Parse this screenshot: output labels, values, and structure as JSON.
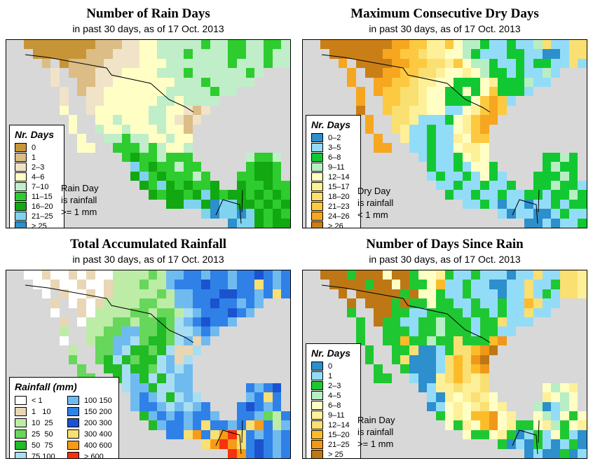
{
  "page": {
    "background": "#ffffff",
    "ocean_color": "#d8d8d8",
    "border_color": "#000000"
  },
  "maps": [
    {
      "title": "Number of Rain Days",
      "subtitle": "in past 30 days, as of  17 Oct. 2013",
      "legend": {
        "title": "Nr. Days",
        "columns": 1,
        "note": "Rain Day\nis rainfall\n>= 1 mm",
        "entries": [
          {
            "label": "0",
            "color": "#c79537"
          },
          {
            "label": "1",
            "color": "#dbbd85"
          },
          {
            "label": "2–3",
            "color": "#f0e3c7"
          },
          {
            "label": "4–6",
            "color": "#ffffc5"
          },
          {
            "label": "7–10",
            "color": "#bfeec9"
          },
          {
            "label": "11–15",
            "color": "#2ecc2e"
          },
          {
            "label": "16–20",
            "color": "#12a812"
          },
          {
            "label": "21–25",
            "color": "#7fd3ee"
          },
          {
            "label": "> 25",
            "color": "#2d8fcb"
          }
        ]
      },
      "palette": {
        "a": "#c79537",
        "b": "#dbbd85",
        "c": "#f0e3c7",
        "d": "#ffffc5",
        "e": "#bfeec9",
        "f": "#2ecc2e",
        "g": "#12a812",
        "h": "#7fd3ee",
        "i": "#2d8fcb"
      },
      "grid": [
        "..aaaaaaaabbbccddeeeeefeeffeeffe",
        "...aaaaaabbbcccddeeefeeeeffeefee",
        "....b.abbbbccccdddeeeeeeefeeefee",
        ".....c.bbbcccddddeeefeeeeeefe...",
        ".....c..bbccdddddddeeefeeeee....",
        "......c.bccdddddddeeeeefee......",
        "......c..ccddddddeedeeee........",
        "......d..cddddddeeddcbc.........",
        ".......d..ddedddeedcbc..........",
        ".......d..eddedddeddb...........",
        "........d..eefeeddedd...........",
        "........dd..fffefedde...........",
        ".............fgffefff......effe.",
        "..............hfgffeff.....fggf.",
        "..............ghfgfffef...ffggf.",
        "...............gfhgfgffg..gffgff",
        "................gfggfghgfggfgfgf",
        "..................gghhgihhggfgfg",
        "......................hihhihgfgf",
        ".........................ihhgfgg"
      ]
    },
    {
      "title": "Maximum Consecutive Dry Days",
      "subtitle": "in past 30 days, as of  17 Oct. 2013",
      "legend": {
        "title": "Nr. Days",
        "columns": 1,
        "note": "Dry Day\nis rainfall\n< 1 mm",
        "entries": [
          {
            "label": "0–2",
            "color": "#2d8fcb"
          },
          {
            "label": "3–5",
            "color": "#93dcf8"
          },
          {
            "label": "6–8",
            "color": "#12c832"
          },
          {
            "label": "9–11",
            "color": "#b7eec3"
          },
          {
            "label": "12–14",
            "color": "#ffffc5"
          },
          {
            "label": "15–17",
            "color": "#fdf098"
          },
          {
            "label": "18–20",
            "color": "#fadf72"
          },
          {
            "label": "21–23",
            "color": "#fcc940"
          },
          {
            "label": "24–26",
            "color": "#f6a61f"
          },
          {
            "label": "> 26",
            "color": "#c97f16"
          }
        ]
      },
      "palette": {
        "a": "#2d8fcb",
        "b": "#93dcf8",
        "c": "#12c832",
        "d": "#b7eec3",
        "e": "#ffffc5",
        "f": "#fdf098",
        "g": "#fadf72",
        "h": "#fcc940",
        "i": "#f6a61f",
        "j": "#c97f16"
      },
      "grid": [
        "..jjjjjjjjiihhffheddcbbcbbdgbbgg",
        "...jjjjjjiihhgffeedcbbbccbbaabgg",
        "....i.jjjjiihhggfheddcbbcbccbbgb",
        ".....i.jjiihhggfeefedccbcbbdb...",
        ".....i..iihhgffeecccefcccdbb....",
        "......i.ihhggfeeccecehcccb......",
        "......i..hhggfeecccehihb........",
        "......j..hggffeebbefhih.........",
        ".......i..ggfbbbcefhii..........",
        ".......i..gfbbcbbefhi...........",
        "........i..fbbcbbfehh...........",
        "........ii..bbcbbeffe...........",
        ".............bcbbcefe......ccdc.",
        "..............cbbcbeec.....cdcc.",
        "..............bcbbcbecb...cccdc.",
        "...............bbcbbcbbc..ccdccb",
        "................cbbcbbcbbccbccdc",
        "..................bbcbabbabbcbcc",
        "......................babbaabcbb",
        ".........................aababbc"
      ]
    },
    {
      "title": "Total Accumulated Rainfall",
      "subtitle": "in past 30 days, as of  17 Oct. 2013",
      "legend": {
        "title": "Rainfall (mm)",
        "columns": 2,
        "note": "",
        "entries": [
          {
            "label": "< 1",
            "color": "#ffffff"
          },
          {
            "label": "1   10",
            "color": "#e9d6b4"
          },
          {
            "label": "10  25",
            "color": "#bdeca6"
          },
          {
            "label": "25  50",
            "color": "#66d75a"
          },
          {
            "label": "50  75",
            "color": "#21bb26"
          },
          {
            "label": "75 100",
            "color": "#a8def2"
          },
          {
            "label": "100 150",
            "color": "#6fbbf0"
          },
          {
            "label": "150 200",
            "color": "#2f81e8"
          },
          {
            "label": "200 300",
            "color": "#1b53cf"
          },
          {
            "label": "300 400",
            "color": "#fadf72"
          },
          {
            "label": "400 600",
            "color": "#f79c18"
          },
          {
            "label": "> 600",
            "color": "#f8310e"
          }
        ]
      },
      "palette": {
        "a": "#ffffff",
        "b": "#e9d6b4",
        "c": "#bdeca6",
        "d": "#66d75a",
        "e": "#21bb26",
        "f": "#a8def2",
        "g": "#6fbbf0",
        "h": "#2f81e8",
        "i": "#1b53cf",
        "j": "#fadf72",
        "k": "#f79c18",
        "l": "#f8310e"
      },
      "grid": [
        "..aabaababaaccccdcgghhghhghhihgh",
        "...aabaabaabcccdccghhhihhghhjhgh",
        "....a.baababcccccdcgghhhiihhghjh",
        ".....b.ababccccddccgghhihhghg...",
        ".....a..baccccddcddcfghhhihg....",
        "......b.acccddcddedfghihhg......",
        "......c..ccddggddedffghg........",
        "......a..cddggfdeedfgbg.........",
        ".......c..ddgfeedefbbf..........",
        ".......d..defedeefgbf...........",
        "........d..eefeedfgfg...........",
        "........dd..efgefefgg...........",
        ".............fggeffgg......hghi.",
        "..............ghgfefgf.....ghjh.",
        "..............ghhgfgfgh...hihgh.",
        "...............eghghghhg..hhgdch",
        "................eghhghjhhghjkhcg",
        "..................hhjkhjkljhghgh",
        "......................jklkjhihgh",
        ".........................lkhihgh"
      ]
    },
    {
      "title": "Number of Days Since Rain",
      "subtitle": "in past 30 days, as of  17 Oct. 2013",
      "legend": {
        "title": "Nr. Days",
        "columns": 1,
        "note": "Rain Day\nis rainfall\n>= 1 mm",
        "entries": [
          {
            "label": "0",
            "color": "#2d8fcb"
          },
          {
            "label": "1",
            "color": "#93dcf8"
          },
          {
            "label": "2–3",
            "color": "#1fc832"
          },
          {
            "label": "4–5",
            "color": "#b7eec3"
          },
          {
            "label": "6–8",
            "color": "#ffffc5"
          },
          {
            "label": "9–11",
            "color": "#fdf098"
          },
          {
            "label": "12–14",
            "color": "#fadf72"
          },
          {
            "label": "15–20",
            "color": "#fcbc2a"
          },
          {
            "label": "21–25",
            "color": "#f0981a"
          },
          {
            "label": "> 25",
            "color": "#bd7714"
          }
        ]
      },
      "palette": {
        "a": "#2d8fcb",
        "b": "#93dcf8",
        "c": "#1fc832",
        "d": "#b7eec3",
        "e": "#ffffc5",
        "f": "#fdf098",
        "g": "#fadf72",
        "h": "#fcbc2a",
        "i": "#f0981a",
        "j": "#bd7714"
      },
      "grid": [
        "..jjjcjjjejjceefcbbcbbbabbgbbggf",
        "...jjjjcjjejccehbbcbbaabbgbbcggf",
        "....j.jjjjjcjeecbbcbbbabbgbcbggf",
        ".....j.jjjcjcceccbbcbbcbbhgbb...",
        ".....c..jjccbbccccbccbcbbgbb....",
        "......c.jccbbccdcccbccgbbb......",
        "......c..cccbccdcccbccbb........",
        "......c..cchccdccgccchi.........",
        ".......c..ccgaabcgghij..........",
        ".......c..cgaaabghgij...........",
        "........c..caaabghghi...........",
        "........cc..baafghgfg...........",
        ".............abffgffg......edef.",
        "..............bafefgfe.....fede.",
        "..............abefefgef...dabde.",
        "...............cefehhief..edbece",
        "................ecfehiefccefdcef",
        "..................eccefcabcbecba",
        "......................cabacbabca",
        ".........................abaacab"
      ]
    }
  ]
}
